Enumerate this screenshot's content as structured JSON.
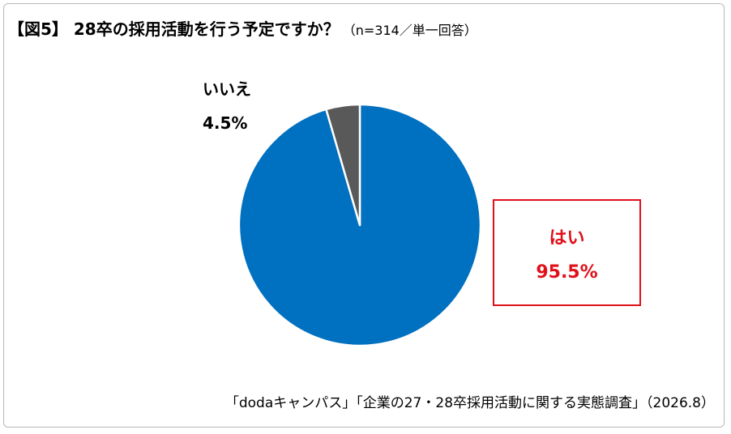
{
  "title": {
    "main": "【図5】 28卒の採用活動を行う予定ですか？",
    "sub": "（n=314／単一回答）"
  },
  "chart_data": {
    "type": "pie",
    "categories": [
      "はい",
      "いいえ"
    ],
    "values": [
      95.5,
      4.5
    ],
    "value_labels": [
      "95.5%",
      "4.5%"
    ],
    "colors": [
      "#0070c0",
      "#595959"
    ],
    "legend": "none"
  },
  "source": "「dodaキャンパス」「企業の27・28卒採用活動に関する実態調査」（2026.8）"
}
